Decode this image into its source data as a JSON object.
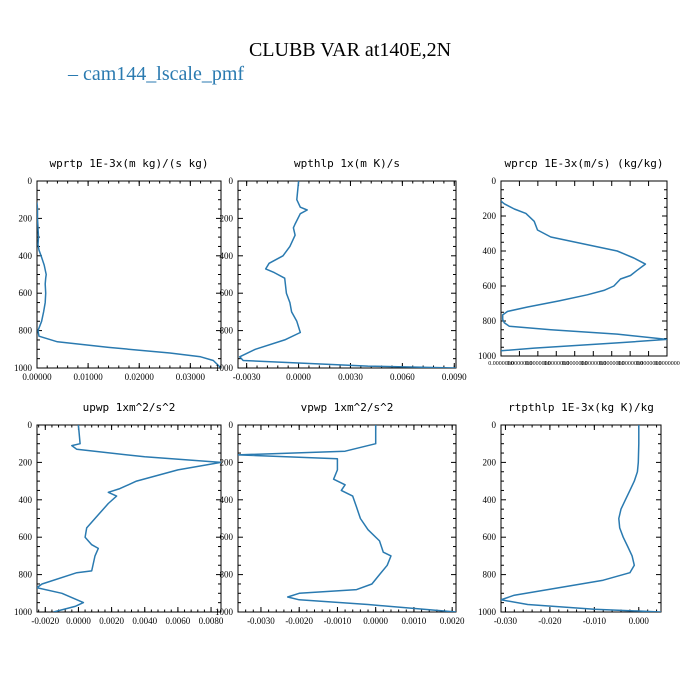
{
  "title": "CLUBB VAR at140E,2N",
  "legend": {
    "label": "cam144_lscale_pmf",
    "color": "#2a7ab0"
  },
  "chart_data": [
    {
      "type": "line",
      "title": "wprtp  1E-3x(m kg)/(s kg)",
      "xlim": [
        0,
        0.036
      ],
      "xticks": [
        "0.00000",
        "0.01000",
        "0.02000",
        "0.03000"
      ],
      "xtick_values": [
        0,
        0.01,
        0.02,
        0.03
      ],
      "ylim": [
        0,
        1000
      ],
      "yticks": [
        "0",
        "200",
        "400",
        "600",
        "800",
        "1000"
      ],
      "series": [
        {
          "x": [
            0,
            0.0001,
            0.0001,
            0.0002,
            0.0003,
            0.0002,
            0.0004,
            0.0008,
            0.0014,
            0.0018,
            0.0017,
            0.0016,
            0.0017,
            0.0016,
            0.0013,
            0.0009,
            0.0002,
            0.0004,
            0.004,
            0.014,
            0.026,
            0.032,
            0.0345,
            0.036
          ],
          "y": [
            115,
            150,
            200,
            250,
            300,
            340,
            370,
            400,
            450,
            500,
            520,
            550,
            600,
            650,
            700,
            750,
            800,
            830,
            860,
            890,
            920,
            940,
            960,
            1000
          ]
        }
      ]
    },
    {
      "type": "line",
      "title": "wpthlp  1x(m K)/s",
      "xlim": [
        -0.0035,
        0.0091
      ],
      "xticks": [
        "-0.0030",
        "0.0000",
        "0.0030",
        "0.0060",
        "0.0090"
      ],
      "xtick_values": [
        -0.003,
        0,
        0.003,
        0.006,
        0.009
      ],
      "ylim": [
        0,
        1000
      ],
      "yticks": [
        "0",
        "200",
        "400",
        "600",
        "800",
        "1000"
      ],
      "series": [
        {
          "x": [
            0,
            -0.0001,
            0.0001,
            0.0005,
            0.0001,
            -0.0002,
            -0.0003,
            -0.0002,
            -0.0005,
            -0.0009,
            -0.0017,
            -0.0019,
            -0.0014,
            -0.0008,
            -0.0007,
            -0.0005,
            -0.0004,
            -0.0001,
            0.0001,
            -0.0008,
            -0.0025,
            -0.0034,
            -0.0032,
            0.004,
            0.0091
          ],
          "y": [
            0,
            100,
            140,
            155,
            175,
            230,
            250,
            290,
            350,
            400,
            440,
            470,
            490,
            520,
            600,
            650,
            700,
            750,
            810,
            850,
            900,
            940,
            960,
            990,
            1000
          ]
        }
      ]
    },
    {
      "type": "line",
      "title": "wprcp  1E-3x(m/s) (kg/kg)",
      "xlim": [
        0,
        1
      ],
      "xticks": [
        "0.0000000",
        "0.0000000",
        "0.0000000",
        "0.0000000",
        "0.0000000",
        "0.0000000",
        "0.0000000",
        "0.0000000",
        "0.0000000",
        "0.0000000"
      ],
      "xtick_values": [
        0,
        0.111,
        0.222,
        0.333,
        0.444,
        0.556,
        0.667,
        0.778,
        0.889,
        1
      ],
      "ylim": [
        0,
        1000
      ],
      "yticks": [
        "0",
        "200",
        "400",
        "600",
        "800",
        "1000"
      ],
      "series": [
        {
          "x": [
            0,
            0.02,
            0.08,
            0.15,
            0.2,
            0.22,
            0.3,
            0.5,
            0.7,
            0.8,
            0.87,
            0.82,
            0.78,
            0.72,
            0.68,
            0.62,
            0.52,
            0.35,
            0.16,
            0.04,
            0.01,
            0.01,
            0.02,
            0.05,
            0.3,
            0.7,
            1.0,
            0.7,
            0.2,
            0.0
          ],
          "y": [
            115,
            130,
            160,
            185,
            230,
            280,
            320,
            360,
            400,
            440,
            475,
            510,
            540,
            560,
            600,
            625,
            650,
            685,
            720,
            745,
            765,
            790,
            810,
            830,
            850,
            875,
            905,
            925,
            955,
            970
          ]
        }
      ]
    },
    {
      "type": "line",
      "title": "upwp  1xm^2/s^2",
      "xlim": [
        -0.0025,
        0.0086
      ],
      "xticks": [
        "-0.0020",
        "0.0000",
        "0.0020",
        "0.0040",
        "0.0060",
        "0.0080"
      ],
      "xtick_values": [
        -0.002,
        0,
        0.002,
        0.004,
        0.006,
        0.008
      ],
      "ylim": [
        0,
        1000
      ],
      "yticks": [
        "0",
        "200",
        "400",
        "600",
        "800",
        "1000"
      ],
      "series": [
        {
          "x": [
            0,
            0.0001,
            -0.0004,
            -0.0001,
            0.004,
            0.0086,
            0.006,
            0.0035,
            0.0025,
            0.0018,
            0.0023,
            0.0018,
            0.0012,
            0.0005,
            0.0004,
            0.0008,
            0.0012,
            0.001,
            0.0008,
            -0.0001,
            -0.0022,
            -0.0025,
            -0.001,
            0.0003,
            -0.0002,
            -0.0015
          ],
          "y": [
            0,
            100,
            110,
            130,
            170,
            200,
            240,
            300,
            340,
            360,
            380,
            420,
            480,
            550,
            600,
            640,
            660,
            700,
            780,
            790,
            850,
            870,
            900,
            950,
            970,
            1000
          ]
        }
      ]
    },
    {
      "type": "line",
      "title": "vpwp  1xm^2/s^2",
      "xlim": [
        -0.0036,
        0.0021
      ],
      "xticks": [
        "-0.0030",
        "-0.0020",
        "-0.0010",
        "0.0000",
        "0.0010",
        "0.0020"
      ],
      "xtick_values": [
        -0.003,
        -0.002,
        -0.001,
        0,
        0.001,
        0.002
      ],
      "ylim": [
        0,
        1000
      ],
      "yticks": [
        "0",
        "200",
        "400",
        "600",
        "800",
        "1000"
      ],
      "series": [
        {
          "x": [
            0,
            0,
            -0.0008,
            -0.0036,
            -0.001,
            -0.001,
            -0.0011,
            -0.0008,
            -0.0009,
            -0.0006,
            -0.0005,
            -0.0004,
            -0.0002,
            0.0001,
            0.0002,
            0.0004,
            0.0003,
            0.0001,
            -0.0001,
            -0.0005,
            -0.002,
            -0.0023,
            -0.002,
            -0.0002,
            0.0021
          ],
          "y": [
            0,
            100,
            140,
            160,
            180,
            240,
            290,
            320,
            350,
            380,
            440,
            500,
            560,
            620,
            680,
            700,
            750,
            800,
            850,
            880,
            900,
            920,
            935,
            960,
            1000
          ]
        }
      ]
    },
    {
      "type": "line",
      "title": "rtpthlp  1E-3x(kg K)/kg",
      "xlim": [
        -0.031,
        0.005
      ],
      "xticks": [
        "-0.030",
        "-0.020",
        "-0.010",
        "0.000"
      ],
      "xtick_values": [
        -0.03,
        -0.02,
        -0.01,
        0
      ],
      "ylim": [
        0,
        1000
      ],
      "yticks": [
        "0",
        "200",
        "400",
        "600",
        "800",
        "1000"
      ],
      "series": [
        {
          "x": [
            0,
            0,
            -0.0001,
            -0.0003,
            -0.001,
            -0.002,
            -0.003,
            -0.004,
            -0.0045,
            -0.0043,
            -0.0035,
            -0.0025,
            -0.0015,
            -0.001,
            -0.002,
            -0.008,
            -0.018,
            -0.028,
            -0.031,
            -0.025,
            -0.01,
            0.005
          ],
          "y": [
            0,
            100,
            200,
            250,
            300,
            350,
            400,
            450,
            500,
            550,
            600,
            650,
            700,
            750,
            790,
            830,
            870,
            910,
            935,
            960,
            985,
            1000
          ]
        }
      ]
    }
  ]
}
